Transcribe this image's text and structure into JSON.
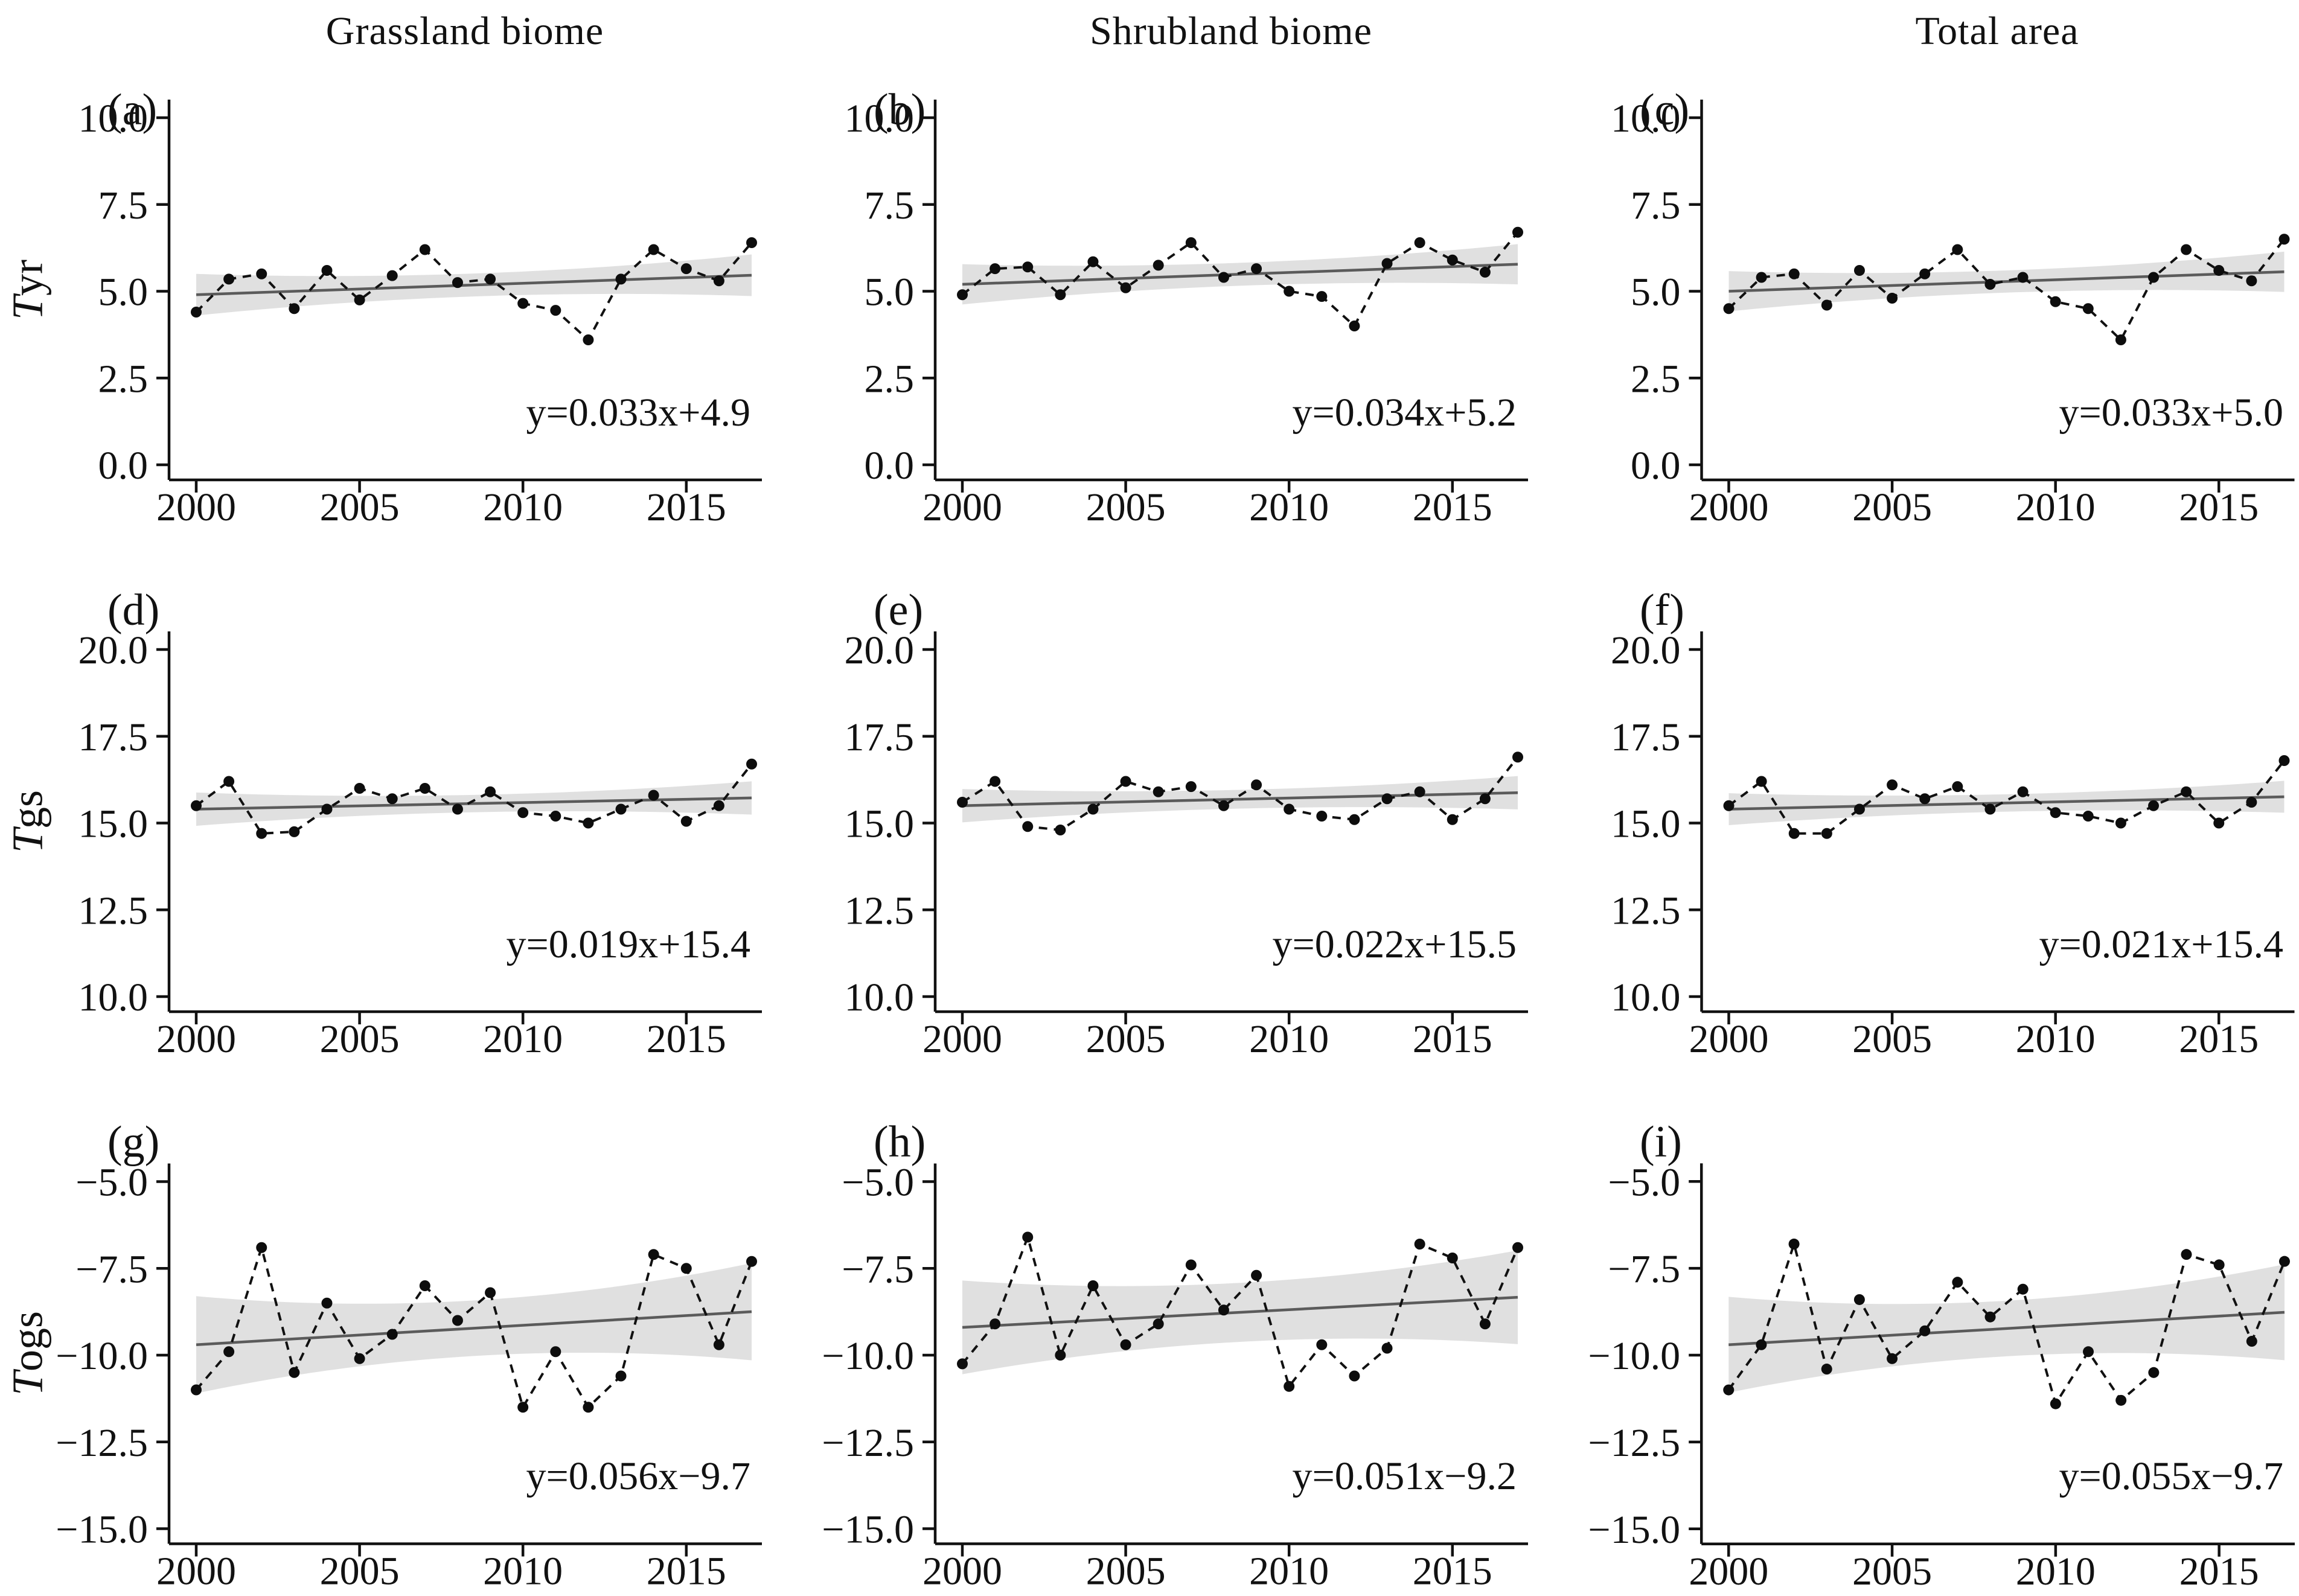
{
  "figure": {
    "column_titles": [
      "Grassland biome",
      "Shrubland biome",
      "Total area"
    ],
    "row_variables": [
      "Tyr",
      "Tgs",
      "Togs"
    ],
    "colors": {
      "series": "#111111",
      "trend_line": "#5b5b5b",
      "confidence_band": "#dadada",
      "text": "#111111",
      "background": "#ffffff"
    }
  },
  "chart_data": [
    {
      "type": "line",
      "panel": "(a)",
      "column_title": "Grassland biome",
      "ylabel": {
        "italic": "T",
        "roman": "yr"
      },
      "years": [
        2000,
        2001,
        2002,
        2003,
        2004,
        2005,
        2006,
        2007,
        2008,
        2009,
        2010,
        2011,
        2012,
        2013,
        2014,
        2015,
        2016,
        2017
      ],
      "values": [
        4.4,
        5.35,
        5.5,
        4.5,
        5.6,
        4.75,
        5.45,
        6.2,
        5.25,
        5.35,
        4.65,
        4.45,
        3.6,
        5.35,
        6.2,
        5.65,
        5.3,
        6.4
      ],
      "equation": "y=0.033x+4.9",
      "trend": {
        "slope": 0.033,
        "intercept": 4.9
      },
      "band": {
        "mid": 0.33,
        "end": 0.6
      },
      "ylim": [
        0,
        10
      ],
      "yticks": [
        0,
        2.5,
        5,
        7.5,
        10
      ],
      "ytick_labels": [
        "0.0",
        "2.5",
        "5.0",
        "7.5",
        "10.0"
      ],
      "xticks": [
        2000,
        2005,
        2010,
        2015
      ],
      "xtick_labels": [
        "2000",
        "2005",
        "2010",
        "2015"
      ],
      "xlim": [
        2000,
        2017
      ]
    },
    {
      "type": "line",
      "panel": "(b)",
      "column_title": "Shrubland biome",
      "years": [
        2000,
        2001,
        2002,
        2003,
        2004,
        2005,
        2006,
        2007,
        2008,
        2009,
        2010,
        2011,
        2012,
        2013,
        2014,
        2015,
        2016,
        2017
      ],
      "values": [
        4.9,
        5.65,
        5.7,
        4.9,
        5.85,
        5.1,
        5.75,
        6.4,
        5.4,
        5.65,
        5.0,
        4.85,
        4.0,
        5.8,
        6.4,
        5.9,
        5.55,
        6.7
      ],
      "equation": "y=0.034x+5.2",
      "trend": {
        "slope": 0.034,
        "intercept": 5.2
      },
      "band": {
        "mid": 0.33,
        "end": 0.58
      },
      "ylim": [
        0,
        10
      ],
      "yticks": [
        0,
        2.5,
        5,
        7.5,
        10
      ],
      "ytick_labels": [
        "0.0",
        "2.5",
        "5.0",
        "7.5",
        "10.0"
      ],
      "xticks": [
        2000,
        2005,
        2010,
        2015
      ],
      "xtick_labels": [
        "2000",
        "2005",
        "2010",
        "2015"
      ],
      "xlim": [
        2000,
        2017
      ]
    },
    {
      "type": "line",
      "panel": "(c)",
      "column_title": "Total area",
      "years": [
        2000,
        2001,
        2002,
        2003,
        2004,
        2005,
        2006,
        2007,
        2008,
        2009,
        2010,
        2011,
        2012,
        2013,
        2014,
        2015,
        2016,
        2017
      ],
      "values": [
        4.5,
        5.4,
        5.5,
        4.6,
        5.6,
        4.8,
        5.5,
        6.2,
        5.2,
        5.4,
        4.7,
        4.5,
        3.6,
        5.4,
        6.2,
        5.6,
        5.3,
        6.5
      ],
      "equation": "y=0.033x+5.0",
      "trend": {
        "slope": 0.033,
        "intercept": 5.0
      },
      "band": {
        "mid": 0.32,
        "end": 0.58
      },
      "ylim": [
        0,
        10
      ],
      "yticks": [
        0,
        2.5,
        5,
        7.5,
        10
      ],
      "ytick_labels": [
        "0.0",
        "2.5",
        "5.0",
        "7.5",
        "10.0"
      ],
      "xticks": [
        2000,
        2005,
        2010,
        2015
      ],
      "xtick_labels": [
        "2000",
        "2005",
        "2010",
        "2015"
      ],
      "xlim": [
        2000,
        2017
      ]
    },
    {
      "type": "line",
      "panel": "(d)",
      "column_title": "",
      "ylabel": {
        "italic": "T",
        "roman": "gs"
      },
      "years": [
        2000,
        2001,
        2002,
        2003,
        2004,
        2005,
        2006,
        2007,
        2008,
        2009,
        2010,
        2011,
        2012,
        2013,
        2014,
        2015,
        2016,
        2017
      ],
      "values": [
        15.5,
        16.2,
        14.7,
        14.75,
        15.4,
        16.0,
        15.7,
        16.0,
        15.4,
        15.9,
        15.3,
        15.2,
        15.0,
        15.4,
        15.8,
        15.05,
        15.5,
        16.7
      ],
      "equation": "y=0.019x+15.4",
      "trend": {
        "slope": 0.019,
        "intercept": 15.4
      },
      "band": {
        "mid": 0.25,
        "end": 0.48
      },
      "ylim": [
        10,
        20
      ],
      "yticks": [
        10,
        12.5,
        15,
        17.5,
        20
      ],
      "ytick_labels": [
        "10.0",
        "12.5",
        "15.0",
        "17.5",
        "20.0"
      ],
      "xticks": [
        2000,
        2005,
        2010,
        2015
      ],
      "xtick_labels": [
        "2000",
        "2005",
        "2010",
        "2015"
      ],
      "xlim": [
        2000,
        2017
      ]
    },
    {
      "type": "line",
      "panel": "(e)",
      "column_title": "",
      "years": [
        2000,
        2001,
        2002,
        2003,
        2004,
        2005,
        2006,
        2007,
        2008,
        2009,
        2010,
        2011,
        2012,
        2013,
        2014,
        2015,
        2016,
        2017
      ],
      "values": [
        15.6,
        16.2,
        14.9,
        14.8,
        15.4,
        16.2,
        15.9,
        16.05,
        15.5,
        16.1,
        15.4,
        15.2,
        15.1,
        15.7,
        15.9,
        15.1,
        15.7,
        16.9
      ],
      "equation": "y=0.022x+15.5",
      "trend": {
        "slope": 0.022,
        "intercept": 15.5
      },
      "band": {
        "mid": 0.27,
        "end": 0.48
      },
      "ylim": [
        10,
        20
      ],
      "yticks": [
        10,
        12.5,
        15,
        17.5,
        20
      ],
      "ytick_labels": [
        "10.0",
        "12.5",
        "15.0",
        "17.5",
        "20.0"
      ],
      "xticks": [
        2000,
        2005,
        2010,
        2015
      ],
      "xtick_labels": [
        "2000",
        "2005",
        "2010",
        "2015"
      ],
      "xlim": [
        2000,
        2017
      ]
    },
    {
      "type": "line",
      "panel": "(f)",
      "column_title": "",
      "years": [
        2000,
        2001,
        2002,
        2003,
        2004,
        2005,
        2006,
        2007,
        2008,
        2009,
        2010,
        2011,
        2012,
        2013,
        2014,
        2015,
        2016,
        2017
      ],
      "values": [
        15.5,
        16.2,
        14.7,
        14.7,
        15.4,
        16.1,
        15.7,
        16.05,
        15.4,
        15.9,
        15.3,
        15.2,
        15.0,
        15.5,
        15.9,
        15.0,
        15.6,
        16.8
      ],
      "equation": "y=0.021x+15.4",
      "trend": {
        "slope": 0.021,
        "intercept": 15.4
      },
      "band": {
        "mid": 0.25,
        "end": 0.46
      },
      "ylim": [
        10,
        20
      ],
      "yticks": [
        10,
        12.5,
        15,
        17.5,
        20
      ],
      "ytick_labels": [
        "10.0",
        "12.5",
        "15.0",
        "17.5",
        "20.0"
      ],
      "xticks": [
        2000,
        2005,
        2010,
        2015
      ],
      "xtick_labels": [
        "2000",
        "2005",
        "2010",
        "2015"
      ],
      "xlim": [
        2000,
        2017
      ]
    },
    {
      "type": "line",
      "panel": "(g)",
      "column_title": "",
      "ylabel": {
        "italic": "T",
        "roman": "ogs"
      },
      "years": [
        2000,
        2001,
        2002,
        2003,
        2004,
        2005,
        2006,
        2007,
        2008,
        2009,
        2010,
        2011,
        2012,
        2013,
        2014,
        2015,
        2016,
        2017
      ],
      "values": [
        -11.0,
        -9.9,
        -6.9,
        -10.5,
        -8.5,
        -10.1,
        -9.4,
        -8.0,
        -9.0,
        -8.2,
        -11.5,
        -9.9,
        -11.5,
        -10.6,
        -7.1,
        -7.5,
        -9.7,
        -7.3
      ],
      "equation": "y=0.056x−9.7",
      "trend": {
        "slope": 0.056,
        "intercept": -9.7
      },
      "band": {
        "mid": 0.8,
        "end": 1.4
      },
      "ylim": [
        -15,
        -5
      ],
      "yticks": [
        -15,
        -12.5,
        -10,
        -7.5,
        -5
      ],
      "ytick_labels": [
        "−15.0",
        "−12.5",
        "−10.0",
        "−7.5",
        "−5.0"
      ],
      "xticks": [
        2000,
        2005,
        2010,
        2015
      ],
      "xtick_labels": [
        "2000",
        "2005",
        "2010",
        "2015"
      ],
      "xlim": [
        2000,
        2017
      ]
    },
    {
      "type": "line",
      "panel": "(h)",
      "column_title": "",
      "years": [
        2000,
        2001,
        2002,
        2003,
        2004,
        2005,
        2006,
        2007,
        2008,
        2009,
        2010,
        2011,
        2012,
        2013,
        2014,
        2015,
        2016,
        2017
      ],
      "values": [
        -10.25,
        -9.1,
        -6.6,
        -10.0,
        -8.0,
        -9.7,
        -9.1,
        -7.4,
        -8.7,
        -7.7,
        -10.9,
        -9.7,
        -10.6,
        -9.8,
        -6.8,
        -7.2,
        -9.1,
        -6.9
      ],
      "equation": "y=0.051x−9.2",
      "trend": {
        "slope": 0.051,
        "intercept": -9.2
      },
      "band": {
        "mid": 0.85,
        "end": 1.35
      },
      "ylim": [
        -15,
        -5
      ],
      "yticks": [
        -15,
        -12.5,
        -10,
        -7.5,
        -5
      ],
      "ytick_labels": [
        "−15.0",
        "−12.5",
        "−10.0",
        "−7.5",
        "−5.0"
      ],
      "xticks": [
        2000,
        2005,
        2010,
        2015
      ],
      "xtick_labels": [
        "2000",
        "2005",
        "2010",
        "2015"
      ],
      "xlim": [
        2000,
        2017
      ]
    },
    {
      "type": "line",
      "panel": "(i)",
      "column_title": "",
      "years": [
        2000,
        2001,
        2002,
        2003,
        2004,
        2005,
        2006,
        2007,
        2008,
        2009,
        2010,
        2011,
        2012,
        2013,
        2014,
        2015,
        2016,
        2017
      ],
      "values": [
        -11.0,
        -9.7,
        -6.8,
        -10.4,
        -8.4,
        -10.1,
        -9.3,
        -7.9,
        -8.9,
        -8.1,
        -11.4,
        -9.9,
        -11.3,
        -10.5,
        -7.1,
        -7.4,
        -9.6,
        -7.3
      ],
      "equation": "y=0.055x−9.7",
      "trend": {
        "slope": 0.055,
        "intercept": -9.7
      },
      "band": {
        "mid": 0.8,
        "end": 1.38
      },
      "ylim": [
        -15,
        -5
      ],
      "yticks": [
        -15,
        -12.5,
        -10,
        -7.5,
        -5
      ],
      "ytick_labels": [
        "−15.0",
        "−12.5",
        "−10.0",
        "−7.5",
        "−5.0"
      ],
      "xticks": [
        2000,
        2005,
        2010,
        2015
      ],
      "xtick_labels": [
        "2000",
        "2005",
        "2010",
        "2015"
      ],
      "xlim": [
        2000,
        2017
      ]
    }
  ]
}
